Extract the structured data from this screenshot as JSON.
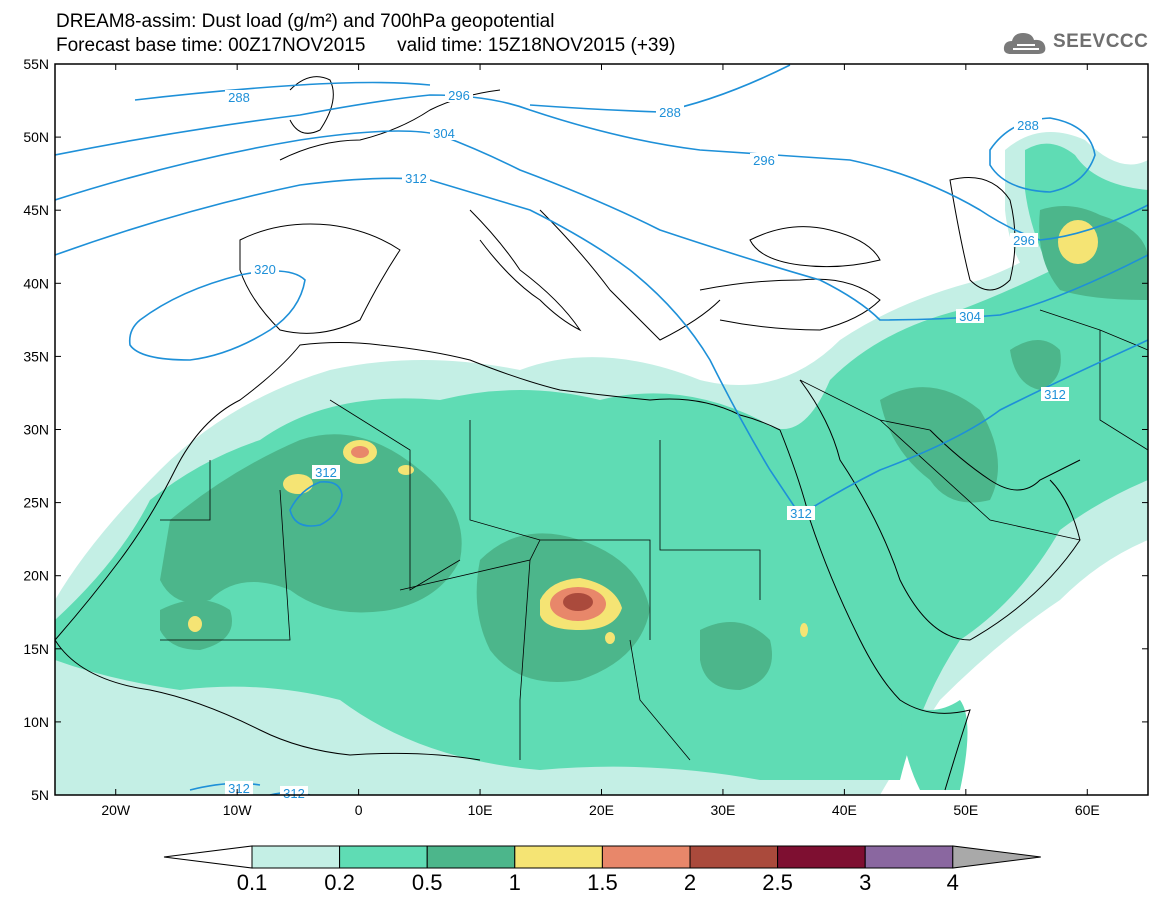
{
  "title": {
    "line1": "DREAM8-assim: Dust load (g/m²) and 700hPa geopotential",
    "line2": "Forecast base time: 00Z17NOV2015      valid time: 15Z18NOV2015 (+39)"
  },
  "logo": {
    "icon": "cloud-logo-icon",
    "text": "SEEVCCC"
  },
  "map": {
    "lon_range": [
      -25,
      65
    ],
    "lat_range": [
      5,
      55
    ],
    "x_ticks": [
      "20W",
      "10W",
      "0",
      "10E",
      "20E",
      "30E",
      "40E",
      "50E",
      "60E"
    ],
    "x_tick_values": [
      -20,
      -10,
      0,
      10,
      20,
      30,
      40,
      50,
      60
    ],
    "y_ticks": [
      "55N",
      "50N",
      "45N",
      "40N",
      "35N",
      "30N",
      "25N",
      "20N",
      "15N",
      "10N",
      "5N"
    ],
    "y_tick_values": [
      55,
      50,
      45,
      40,
      35,
      30,
      25,
      20,
      15,
      10,
      5
    ],
    "contour_color": "#1e90d8",
    "contour_labels": [
      "288",
      "296",
      "304",
      "312",
      "320",
      "288",
      "296",
      "288",
      "296",
      "304",
      "312",
      "312",
      "312",
      "312",
      "312"
    ]
  },
  "colorbar": {
    "labels": [
      "0.1",
      "0.2",
      "0.5",
      "1",
      "1.5",
      "2",
      "2.5",
      "3",
      "4"
    ],
    "colors": [
      "#c4efe5",
      "#5fdcb4",
      "#4cb68b",
      "#f5e474",
      "#e8876a",
      "#aa4a3c",
      "#7e0f31",
      "#8a67a0"
    ],
    "under_color": "#ffffff",
    "over_color": "#a9a9a9"
  }
}
